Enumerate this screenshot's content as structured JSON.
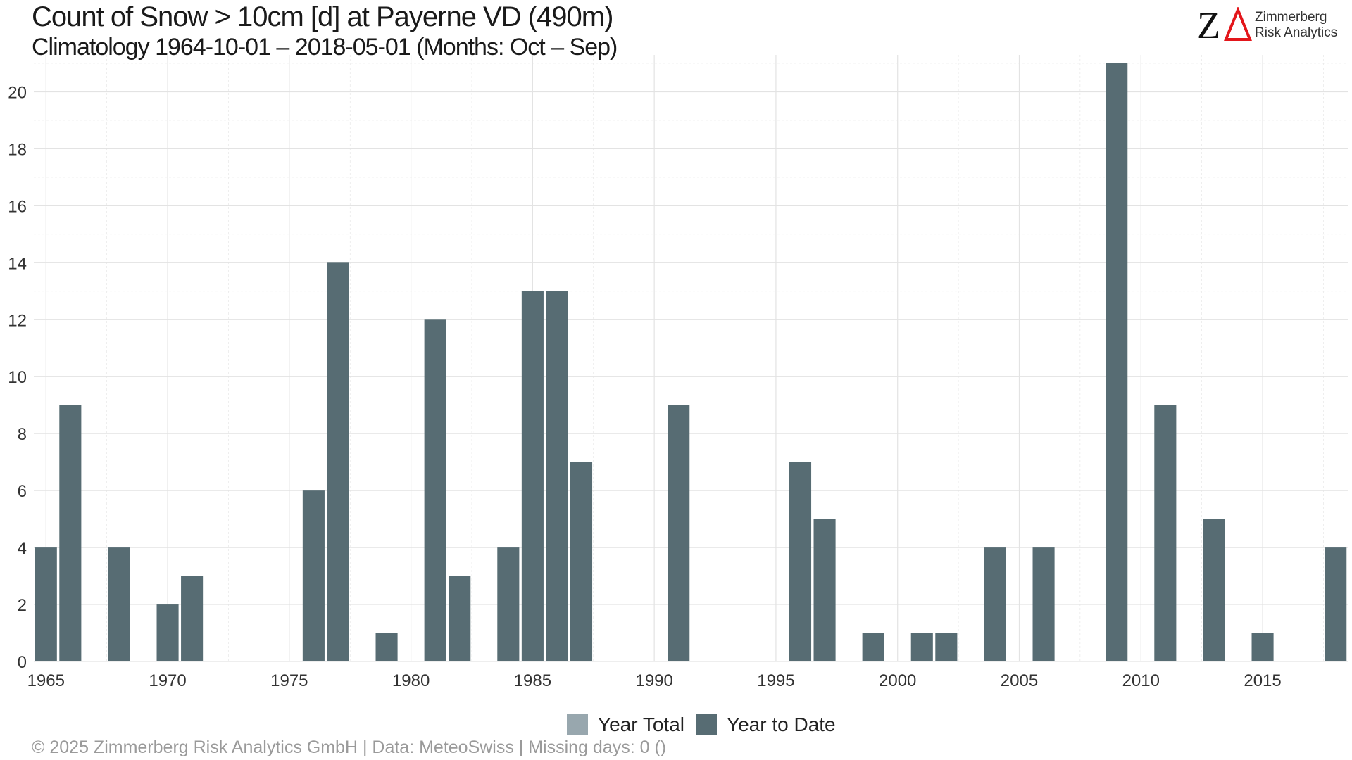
{
  "header": {
    "title": "Count of Snow > 10cm [d] at Payerne  VD (490m)",
    "subtitle": "Climatology 1964-10-01 – 2018-05-01 (Months: Oct – Sep)"
  },
  "logo": {
    "mark": "ZΔ",
    "line1": "Zimmerberg",
    "line2": "Risk Analytics"
  },
  "colors": {
    "year_total": "#98a7ae",
    "year_to_date": "#576c73",
    "grid": "#e3e3e3",
    "logo_triangle": "#e3161b"
  },
  "legend": {
    "items": [
      {
        "label": "Year Total",
        "color": "#98a7ae"
      },
      {
        "label": "Year to Date",
        "color": "#576c73"
      }
    ]
  },
  "caption": "©  2025 Zimmerberg Risk Analytics GmbH | Data: MeteoSwiss | Missing days: 0 ()",
  "chart_data": {
    "type": "bar",
    "title": "Count of Snow > 10cm [d] at Payerne  VD (490m)",
    "subtitle": "Climatology 1964-10-01 – 2018-05-01 (Months: Oct – Sep)",
    "xlabel": "",
    "ylabel": "",
    "x_ticks": [
      1965,
      1970,
      1975,
      1980,
      1985,
      1990,
      1995,
      2000,
      2005,
      2010,
      2015
    ],
    "y_ticks": [
      0,
      2,
      4,
      6,
      8,
      10,
      12,
      14,
      16,
      18,
      20
    ],
    "xlim": [
      1964.5,
      2018.5
    ],
    "ylim": [
      0,
      21
    ],
    "grid": true,
    "legend_position": "bottom",
    "series": [
      {
        "name": "Year to Date",
        "x": [
          1965,
          1966,
          1968,
          1970,
          1971,
          1976,
          1977,
          1979,
          1981,
          1982,
          1984,
          1985,
          1986,
          1987,
          1991,
          1996,
          1997,
          1999,
          2001,
          2002,
          2004,
          2006,
          2009,
          2011,
          2013,
          2015,
          2018
        ],
        "values": [
          4,
          9,
          4,
          2,
          3,
          6,
          14,
          1,
          12,
          3,
          4,
          13,
          13,
          7,
          9,
          7,
          5,
          1,
          1,
          1,
          4,
          4,
          21,
          9,
          5,
          1,
          4
        ]
      }
    ]
  }
}
